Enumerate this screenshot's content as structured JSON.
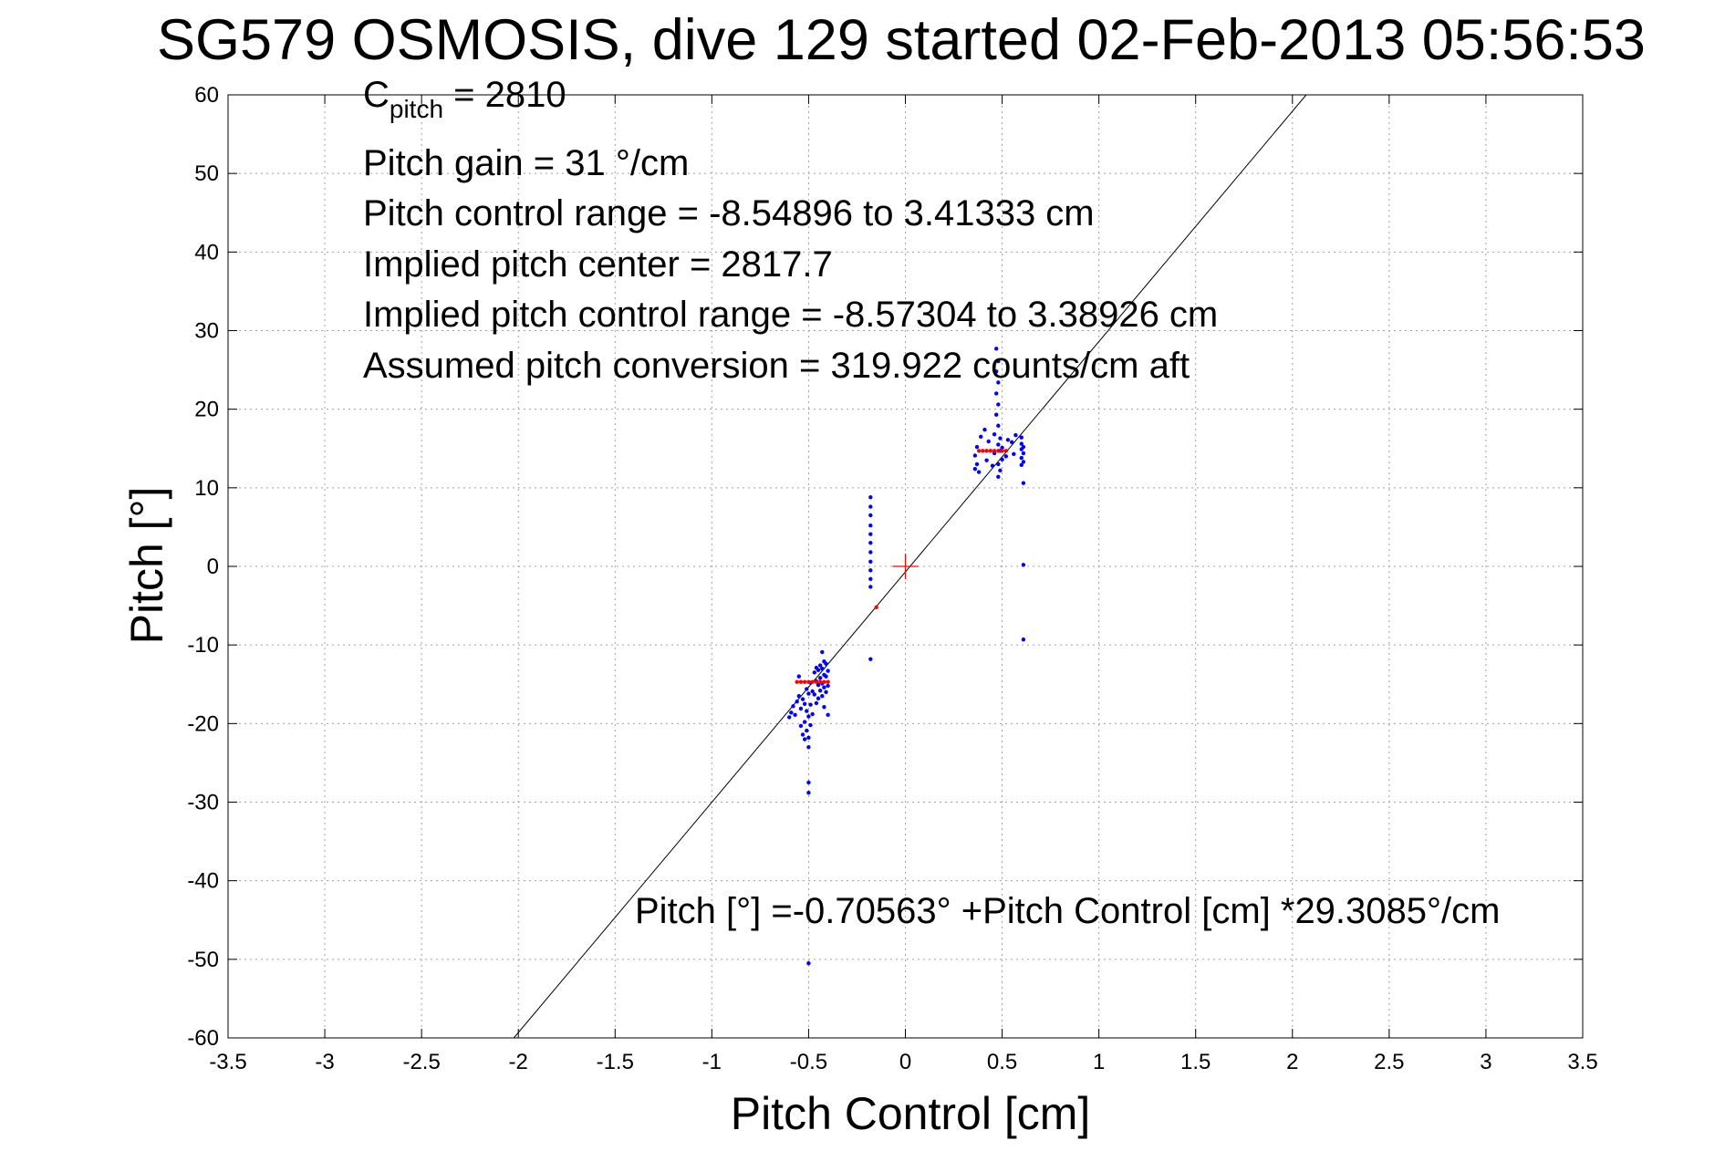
{
  "chart_data": {
    "type": "scatter",
    "title": "SG579 OSMOSIS, dive 129 started 02-Feb-2013 05:56:53",
    "xlabel": "Pitch Control [cm]",
    "ylabel": "Pitch [°]",
    "xlim": [
      -3.5,
      3.5
    ],
    "ylim": [
      -60,
      60
    ],
    "x_ticks": [
      -3.5,
      -3,
      -2.5,
      -2,
      -1.5,
      -1,
      -0.5,
      0,
      0.5,
      1,
      1.5,
      2,
      2.5,
      3,
      3.5
    ],
    "x_tick_labels": [
      "-3.5",
      "-3",
      "-2.5",
      "-2",
      "-1.5",
      "-1",
      "-0.5",
      "0",
      "0.5",
      "1",
      "1.5",
      "2",
      "2.5",
      "3",
      "3.5"
    ],
    "y_ticks": [
      60,
      50,
      40,
      30,
      20,
      10,
      0,
      -10,
      -20,
      -30,
      -40,
      -50,
      -60
    ],
    "y_tick_labels": [
      "60",
      "50",
      "40",
      "30",
      "20",
      "10",
      "0",
      "-10",
      "-20",
      "-30",
      "-40",
      "-50",
      "-60"
    ],
    "grid": true,
    "annotations": {
      "c_pitch_main": "C",
      "c_pitch_sub": "pitch",
      "c_pitch_rest": " = 2810",
      "line2": "Pitch gain = 31 °/cm",
      "line3": "Pitch control range = -8.54896 to 3.41333 cm",
      "line4": "Implied pitch center = 2817.7",
      "line5": "Implied pitch control range = -8.57304 to 3.38926 cm",
      "line6": "Assumed pitch conversion = 319.922 counts/cm aft",
      "fit_equation": "Pitch [°] =-0.70563° +Pitch Control [cm] *29.3085°/cm"
    },
    "fit_line": {
      "intercept": -0.70563,
      "slope": 29.3085,
      "color": "#000000"
    },
    "origin_marker": {
      "x": 0,
      "y": 0,
      "color": "#ff0000"
    },
    "series": [
      {
        "color": "#0000ff",
        "points": [
          [
            -0.6,
            -19.2
          ],
          [
            -0.59,
            -18.6
          ],
          [
            -0.58,
            -17.8
          ],
          [
            -0.57,
            -18.9
          ],
          [
            -0.56,
            -17.2
          ],
          [
            -0.55,
            -16.5
          ],
          [
            -0.54,
            -18.1
          ],
          [
            -0.54,
            -20.3
          ],
          [
            -0.53,
            -16.9
          ],
          [
            -0.53,
            -21.4
          ],
          [
            -0.52,
            -17.5
          ],
          [
            -0.52,
            -19.8
          ],
          [
            -0.52,
            -22.0
          ],
          [
            -0.51,
            -15.6
          ],
          [
            -0.51,
            -18.4
          ],
          [
            -0.51,
            -20.9
          ],
          [
            -0.5,
            -16.2
          ],
          [
            -0.5,
            -19.1
          ],
          [
            -0.5,
            -21.8
          ],
          [
            -0.5,
            -23.0
          ],
          [
            -0.5,
            -27.5
          ],
          [
            -0.5,
            -28.8
          ],
          [
            -0.5,
            -50.5
          ],
          [
            -0.49,
            -14.8
          ],
          [
            -0.49,
            -17.6
          ],
          [
            -0.49,
            -20.2
          ],
          [
            -0.48,
            -15.9
          ],
          [
            -0.48,
            -18.8
          ],
          [
            -0.47,
            -13.5
          ],
          [
            -0.47,
            -16.3
          ],
          [
            -0.46,
            -12.9
          ],
          [
            -0.46,
            -14.6
          ],
          [
            -0.46,
            -17.4
          ],
          [
            -0.45,
            -13.2
          ],
          [
            -0.45,
            -15.1
          ],
          [
            -0.45,
            -16.8
          ],
          [
            -0.44,
            -12.6
          ],
          [
            -0.44,
            -14.2
          ],
          [
            -0.44,
            -15.8
          ],
          [
            -0.43,
            -13.0
          ],
          [
            -0.43,
            -14.9
          ],
          [
            -0.43,
            -16.5
          ],
          [
            -0.42,
            -12.1
          ],
          [
            -0.42,
            -13.8
          ],
          [
            -0.42,
            -15.4
          ],
          [
            -0.42,
            -17.9
          ],
          [
            -0.41,
            -12.4
          ],
          [
            -0.41,
            -14.0
          ],
          [
            -0.41,
            -16.0
          ],
          [
            -0.4,
            -13.3
          ],
          [
            -0.4,
            -15.2
          ],
          [
            -0.4,
            -18.9
          ],
          [
            -0.43,
            -10.9
          ],
          [
            -0.55,
            -14.0
          ],
          [
            -0.18,
            8.8
          ],
          [
            -0.18,
            7.6
          ],
          [
            -0.18,
            6.5
          ],
          [
            -0.18,
            5.2
          ],
          [
            -0.18,
            4.1
          ],
          [
            -0.18,
            3.0
          ],
          [
            -0.18,
            1.8
          ],
          [
            -0.18,
            0.6
          ],
          [
            -0.18,
            -0.5
          ],
          [
            -0.18,
            -1.6
          ],
          [
            -0.18,
            -2.6
          ],
          [
            -0.18,
            -11.8
          ],
          [
            0.36,
            12.4
          ],
          [
            0.36,
            14.1
          ],
          [
            0.37,
            13.0
          ],
          [
            0.37,
            15.2
          ],
          [
            0.38,
            12.0
          ],
          [
            0.39,
            16.5
          ],
          [
            0.41,
            17.4
          ],
          [
            0.42,
            13.5
          ],
          [
            0.43,
            15.9
          ],
          [
            0.45,
            12.8
          ],
          [
            0.46,
            14.4
          ],
          [
            0.46,
            16.8
          ],
          [
            0.47,
            19.3
          ],
          [
            0.47,
            22.0
          ],
          [
            0.47,
            24.8
          ],
          [
            0.47,
            27.7
          ],
          [
            0.48,
            11.4
          ],
          [
            0.48,
            13.0
          ],
          [
            0.48,
            15.5
          ],
          [
            0.48,
            17.9
          ],
          [
            0.48,
            20.6
          ],
          [
            0.48,
            23.4
          ],
          [
            0.48,
            26.1
          ],
          [
            0.49,
            12.2
          ],
          [
            0.49,
            14.7
          ],
          [
            0.49,
            16.3
          ],
          [
            0.5,
            13.6
          ],
          [
            0.5,
            15.1
          ],
          [
            0.52,
            14.0
          ],
          [
            0.53,
            16.1
          ],
          [
            0.55,
            15.8
          ],
          [
            0.56,
            14.3
          ],
          [
            0.57,
            16.7
          ],
          [
            0.6,
            12.9
          ],
          [
            0.6,
            13.8
          ],
          [
            0.6,
            14.9
          ],
          [
            0.6,
            15.6
          ],
          [
            0.6,
            16.4
          ],
          [
            0.61,
            13.3
          ],
          [
            0.61,
            14.4
          ],
          [
            0.61,
            15.2
          ],
          [
            0.61,
            10.6
          ],
          [
            0.61,
            0.2
          ],
          [
            0.61,
            -9.3
          ]
        ]
      },
      {
        "color": "#ff0000",
        "points": [
          [
            -0.56,
            -14.7
          ],
          [
            -0.54,
            -14.7
          ],
          [
            -0.52,
            -14.7
          ],
          [
            -0.5,
            -14.7
          ],
          [
            -0.48,
            -14.7
          ],
          [
            -0.46,
            -14.7
          ],
          [
            -0.44,
            -14.7
          ],
          [
            -0.42,
            -14.7
          ],
          [
            -0.4,
            -14.7
          ],
          [
            -0.15,
            -5.2
          ],
          [
            0.38,
            14.7
          ],
          [
            0.4,
            14.7
          ],
          [
            0.42,
            14.7
          ],
          [
            0.44,
            14.7
          ],
          [
            0.46,
            14.7
          ],
          [
            0.48,
            14.7
          ],
          [
            0.5,
            14.7
          ],
          [
            0.52,
            14.7
          ]
        ]
      }
    ]
  }
}
